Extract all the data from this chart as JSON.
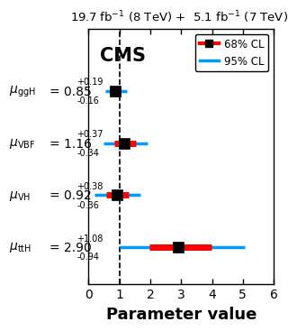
{
  "title": "19.7 fb$^{-1}$ (8 TeV) +  5.1 fb$^{-1}$ (7 TeV)",
  "xlabel": "Parameter value",
  "cms_label": "CMS",
  "measurements": [
    {
      "label": "ggH",
      "y": 4,
      "val": 0.85,
      "up68": 0.19,
      "dn68": 0.16,
      "up95": 0.38,
      "dn95": 0.32
    },
    {
      "label": "VBF",
      "y": 3,
      "val": 1.16,
      "up68": 0.37,
      "dn68": 0.34,
      "up95": 0.74,
      "dn95": 0.68
    },
    {
      "label": "VH",
      "y": 2,
      "val": 0.92,
      "up68": 0.38,
      "dn68": 0.36,
      "up95": 0.76,
      "dn95": 0.72
    },
    {
      "label": "ttH",
      "y": 1,
      "val": 2.9,
      "up68": 1.08,
      "dn68": 0.94,
      "up95": 2.16,
      "dn95": 1.88
    }
  ],
  "ylabels": [
    {
      "y": 4,
      "mu": "$\\mu_{\\mathregular{ggH}}$",
      "val_str": "= 0.85",
      "sup_str": "+0.19",
      "sub_str": "-0.16"
    },
    {
      "y": 3,
      "mu": "$\\mu_{\\mathregular{VBF}}$",
      "val_str": "= 1.16",
      "sup_str": "+0.37",
      "sub_str": "-0.34"
    },
    {
      "y": 2,
      "mu": "$\\mu_{\\mathregular{VH}}$",
      "val_str": "= 0.92",
      "sup_str": "+0.38",
      "sub_str": "-0.36"
    },
    {
      "y": 1,
      "mu": "$\\mu_{\\mathregular{ttH}}$",
      "val_str": "= 2.90",
      "sup_str": "+1.08",
      "sub_str": "-0.94"
    }
  ],
  "xlim": [
    0,
    6
  ],
  "ylim": [
    0.3,
    5.2
  ],
  "dashed_x": 1.0,
  "color_68": "#ff0000",
  "color_95": "#0099ff",
  "marker_color": "black",
  "bar_lw_68": 5,
  "bar_lw_95": 2.5,
  "marker_size": 8,
  "title_fontsize": 9.5,
  "cms_fontsize": 15,
  "xlabel_fontsize": 13,
  "tick_fontsize": 10,
  "label_fontsize": 10,
  "sup_sub_fontsize": 7
}
